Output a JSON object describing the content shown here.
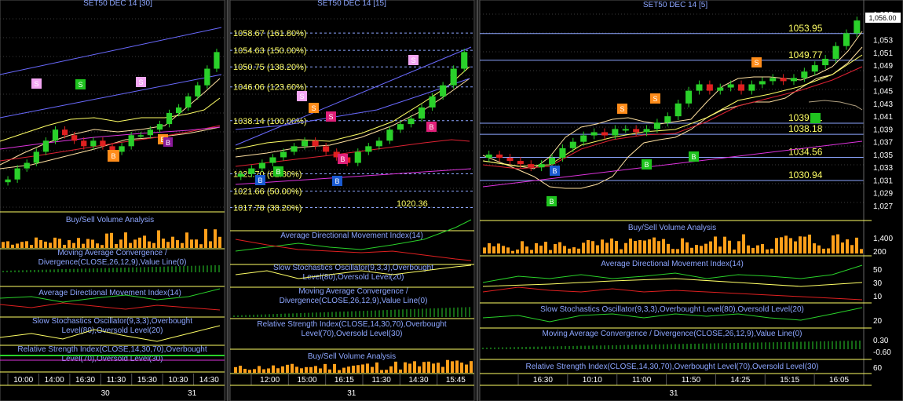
{
  "panels": [
    {
      "title": "SET50 DEC 14   [30]",
      "indicators": [
        "Buy/Sell Volume Analysis",
        "Moving Average Convergence / Divergence(CLOSE,26,12,9),Value Line(0)",
        "Average Directional Movement Index(14)",
        "Slow Stochastics Oscillator(9,3,3),Overbought Level(80),Oversold Level(20)",
        "Relative Strength Index(CLOSE,14,30,70),Overbought Level(70),Oversold Level(30)"
      ],
      "time_labels": [
        "10:00",
        "14:00",
        "16:30",
        "11:30",
        "15:30",
        "10:30",
        "14:30"
      ],
      "date_labels": [
        "30",
        "31"
      ],
      "signals": [
        "S",
        "S",
        "S",
        "B",
        "B",
        "B"
      ]
    },
    {
      "title": "SET50 DEC 14   [15]",
      "fib_labels": [
        "1058.67 (161.80%)",
        "1054.63 (150.00%)",
        "1050.75 (138.20%)",
        "1046.06 (123.60%)",
        "1038.14 (100.00%)",
        "1025.70 (61.80%)",
        "1021.66 (50.00%)",
        "1017.78 (38.20%)"
      ],
      "level_label": "1020.36",
      "indicators": [
        "Average Directional Movement Index(14)",
        "Slow Stochastics Oscillator(9,3,3),Overbought Level(80),Oversold Level(20)",
        "Moving Average Convergence / Divergence(CLOSE,26,12,9),Value Line(0)",
        "Relative Strength Index(CLOSE,14,30,70),Overbought Level(70),Oversold Level(30)",
        "Buy/Sell Volume Analysis"
      ],
      "time_labels": [
        "12:00",
        "15:00",
        "16:15",
        "11:30",
        "14:30",
        "15:45"
      ],
      "date_labels": [
        "31"
      ],
      "signals": [
        "S",
        "S",
        "S",
        "S",
        "B",
        "B",
        "B",
        "B",
        "B"
      ]
    },
    {
      "title": "SET50 DEC 14   [5]",
      "levels": [
        "1053.95",
        "1049.77",
        "1039.91",
        "1038.18",
        "1034.56",
        "1030.94"
      ],
      "price_axis": [
        "1,057",
        "1,053",
        "1,051",
        "1,049",
        "1,047",
        "1,045",
        "1,043",
        "1,041",
        "1,039",
        "1,037",
        "1,035",
        "1,033",
        "1,031",
        "1,029",
        "1,027"
      ],
      "last_price": "1,056.00",
      "volume_axis": [
        "1,400",
        "200"
      ],
      "adx_axis": [
        "50",
        "30",
        "10"
      ],
      "stoch_axis": [
        "20"
      ],
      "macd_axis": [
        "0.30",
        "-0.60"
      ],
      "rsi_axis": [
        "60"
      ],
      "indicators": [
        "Buy/Sell Volume Analysis",
        "Average Directional Movement Index(14)",
        "Slow Stochastics Oscillator(9,3,3),Overbought Level(80),Oversold Level(20)",
        "Moving Average Convergence / Divergence(CLOSE,26,12,9),Value Line(0)",
        "Relative Strength Index(CLOSE,14,30,70),Overbought Level(70),Oversold Level(30)"
      ],
      "time_labels": [
        "16:30",
        "10:10",
        "11:00",
        "11:50",
        "14:25",
        "15:15",
        "16:05"
      ],
      "date_labels": [
        "31"
      ],
      "signals": [
        "S",
        "S",
        "S",
        "B",
        "B",
        "B",
        "B"
      ]
    }
  ],
  "colors": {
    "background": "#000000",
    "grid": "#3a3a3a",
    "axis_text": "#ffffff",
    "label_text": "#ffff66",
    "indicator_title": "#8da6ff",
    "candle_up": "#2ad12a",
    "candle_down": "#e02020",
    "volume": "#ff9f1a",
    "sell_signal": "#ff8c1a",
    "buy_signal": "#1fc41f"
  },
  "chart_data": [
    {
      "type": "candlestick",
      "title": "SET50 DEC 14 [30]",
      "x_ticks": [
        "10:00",
        "14:00",
        "16:30",
        "11:30",
        "15:30",
        "10:30",
        "14:30"
      ],
      "close": [
        1033,
        1035,
        1036,
        1038,
        1040,
        1042,
        1041,
        1040,
        1039,
        1040,
        1039,
        1038,
        1039,
        1041,
        1041,
        1042,
        1043,
        1045,
        1046,
        1048,
        1050,
        1053,
        1056
      ]
    },
    {
      "type": "candlestick",
      "title": "SET50 DEC 14 [15]",
      "fib_levels": [
        1058.67,
        1054.63,
        1050.75,
        1046.06,
        1038.14,
        1025.7,
        1021.66,
        1017.78
      ],
      "x_ticks": [
        "12:00",
        "15:00",
        "16:15",
        "11:30",
        "14:30",
        "15:45"
      ],
      "close": [
        1034,
        1035,
        1036,
        1037,
        1038,
        1039,
        1040,
        1039,
        1038,
        1037,
        1036,
        1038,
        1039,
        1040,
        1042,
        1043,
        1044,
        1046,
        1048,
        1050,
        1053,
        1056
      ]
    },
    {
      "type": "candlestick",
      "title": "SET50 DEC 14 [5]",
      "ylim": [
        1027,
        1057
      ],
      "levels": [
        1053.95,
        1049.77,
        1039.91,
        1038.18,
        1034.56,
        1030.94
      ],
      "last_price": 1056.0,
      "x_ticks": [
        "16:30",
        "10:10",
        "11:00",
        "11:50",
        "14:25",
        "15:15",
        "16:05"
      ],
      "close": [
        1035,
        1034.5,
        1034,
        1033.5,
        1033,
        1033.5,
        1034.5,
        1036,
        1037,
        1038,
        1038.5,
        1038,
        1039,
        1039,
        1038.5,
        1039,
        1040,
        1041,
        1043,
        1045,
        1046,
        1045,
        1045.5,
        1046,
        1045,
        1046,
        1046.5,
        1047,
        1046.5,
        1047,
        1048,
        1049,
        1050,
        1052,
        1054,
        1056
      ]
    }
  ]
}
